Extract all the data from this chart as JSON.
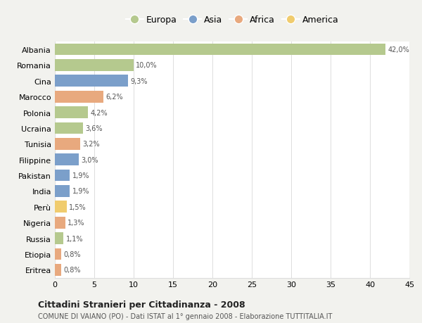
{
  "categories": [
    "Albania",
    "Romania",
    "Cina",
    "Marocco",
    "Polonia",
    "Ucraina",
    "Tunisia",
    "Filippine",
    "Pakistan",
    "India",
    "Perù",
    "Nigeria",
    "Russia",
    "Etiopia",
    "Eritrea"
  ],
  "values": [
    42.0,
    10.0,
    9.3,
    6.2,
    4.2,
    3.6,
    3.2,
    3.0,
    1.9,
    1.9,
    1.5,
    1.3,
    1.1,
    0.8,
    0.8
  ],
  "labels": [
    "42,0%",
    "10,0%",
    "9,3%",
    "6,2%",
    "4,2%",
    "3,6%",
    "3,2%",
    "3,0%",
    "1,9%",
    "1,9%",
    "1,5%",
    "1,3%",
    "1,1%",
    "0,8%",
    "0,8%"
  ],
  "colors": [
    "#b5c98e",
    "#b5c98e",
    "#7b9fca",
    "#e8a97e",
    "#b5c98e",
    "#b5c98e",
    "#e8a97e",
    "#7b9fca",
    "#7b9fca",
    "#7b9fca",
    "#f0cc6e",
    "#e8a97e",
    "#b5c98e",
    "#e8a97e",
    "#e8a97e"
  ],
  "legend_labels": [
    "Europa",
    "Asia",
    "Africa",
    "America"
  ],
  "legend_colors": [
    "#b5c98e",
    "#7b9fca",
    "#e8a97e",
    "#f0cc6e"
  ],
  "xlim": [
    0,
    45
  ],
  "xticks": [
    0,
    5,
    10,
    15,
    20,
    25,
    30,
    35,
    40,
    45
  ],
  "title": "Cittadini Stranieri per Cittadinanza - 2008",
  "subtitle": "COMUNE DI VAIANO (PO) - Dati ISTAT al 1° gennaio 2008 - Elaborazione TUTTITALIA.IT",
  "background_color": "#f2f2ee",
  "plot_background": "#ffffff",
  "grid_color": "#dddddd",
  "bar_height": 0.75
}
